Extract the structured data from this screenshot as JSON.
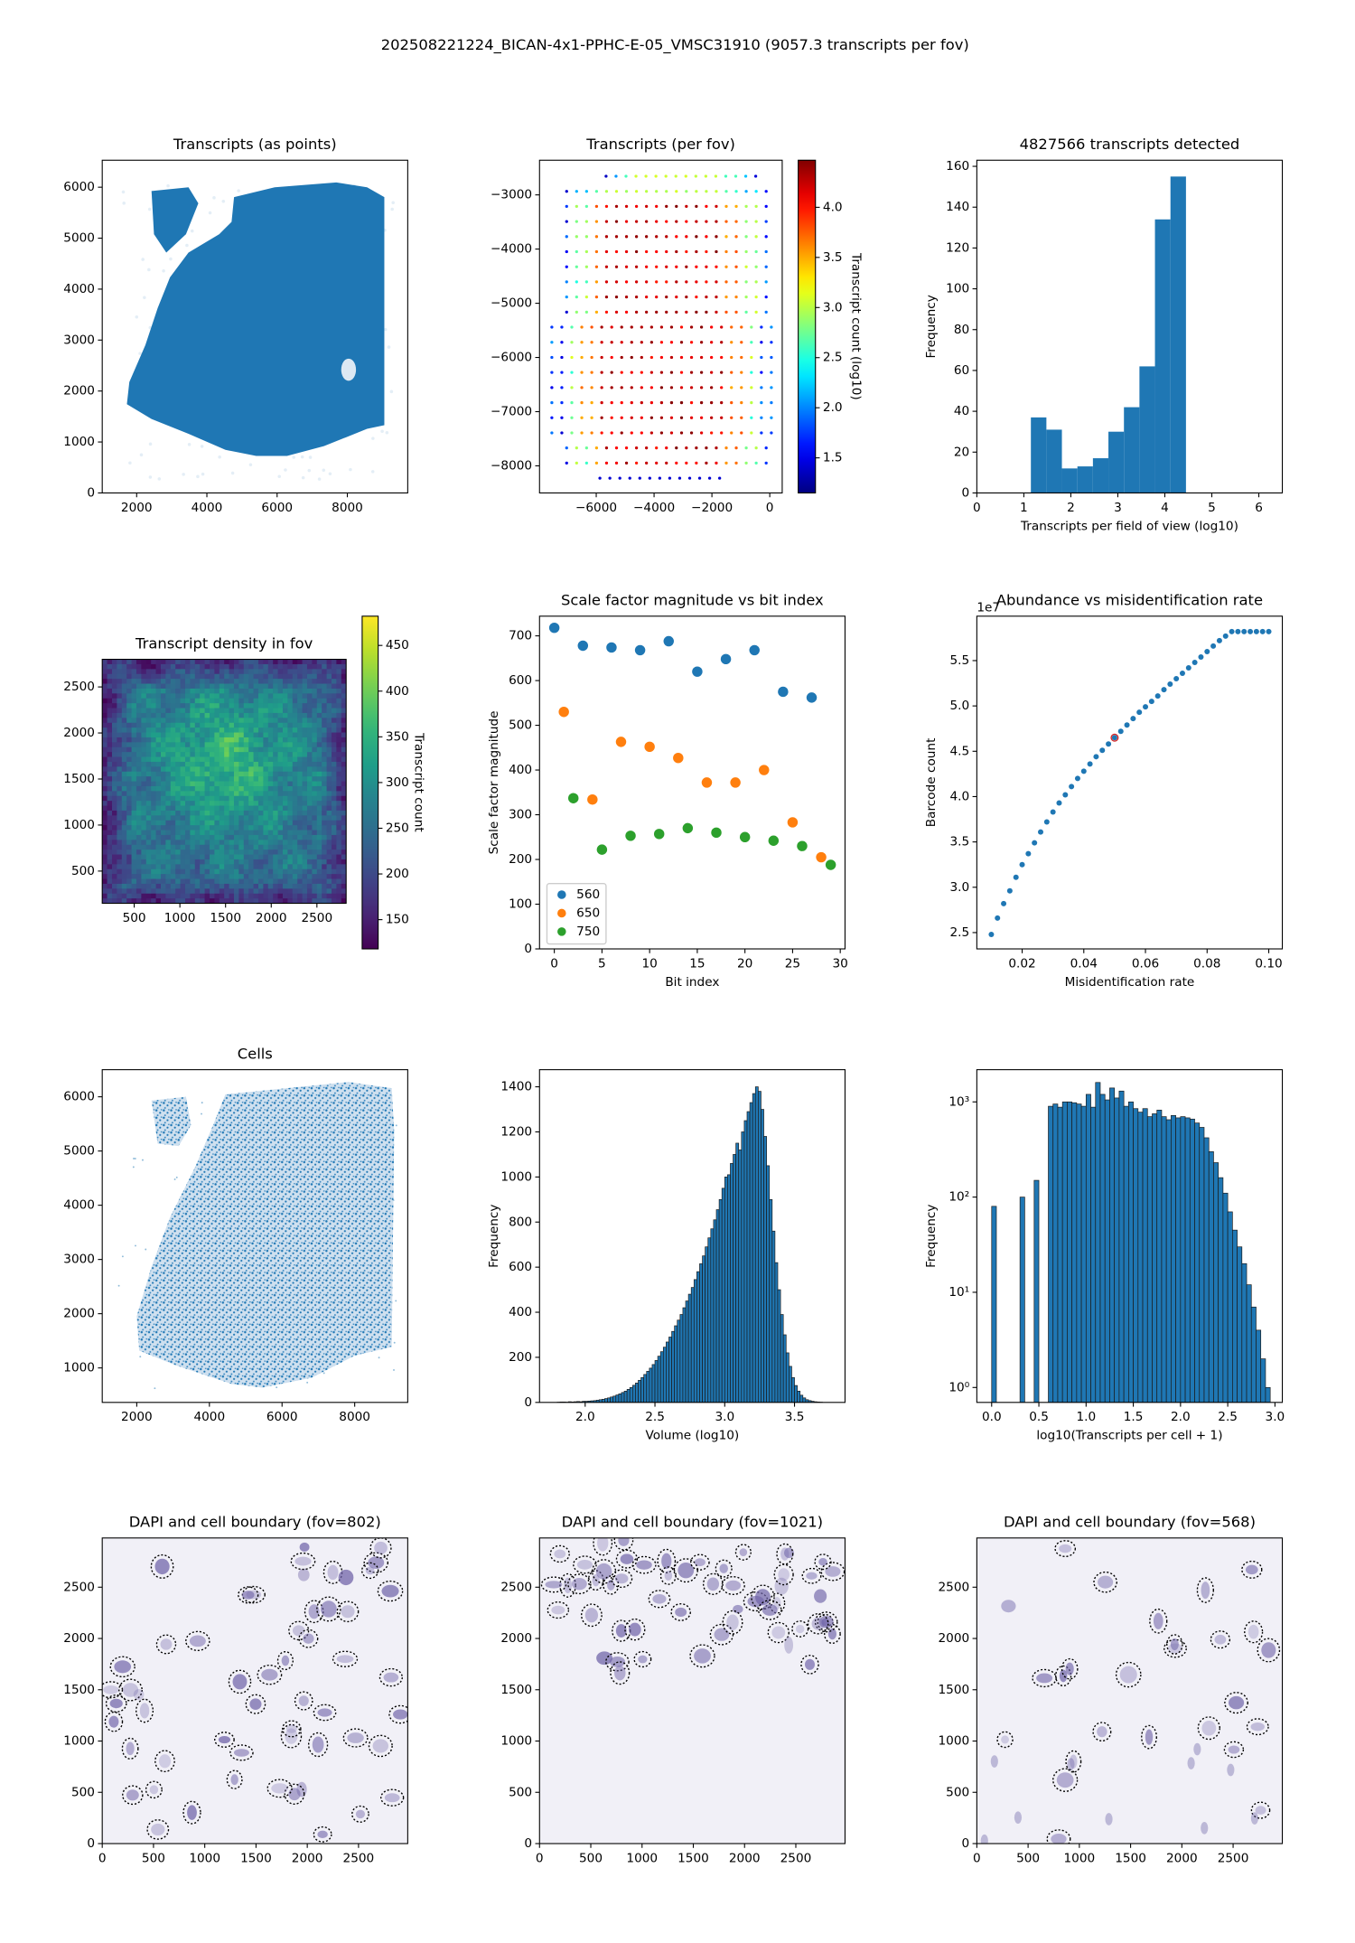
{
  "title": "202508221224_BICAN-4x1-PPHC-E-05_VMSC31910 (9057.3 transcripts per fov)",
  "chart_data": [
    {
      "type": "pointcloud",
      "title": "Transcripts (as points)",
      "color": "#1f77b4",
      "xlim": [
        1020,
        9720
      ],
      "ylim": [
        0,
        6530
      ],
      "xticks": [
        2000,
        4000,
        6000,
        8000
      ],
      "yticks": [
        0,
        1000,
        2000,
        3000,
        4000,
        5000,
        6000
      ]
    },
    {
      "type": "fovgrid",
      "title": "Transcripts (per fov)",
      "xlim": [
        -7960,
        430
      ],
      "ylim": [
        -8500,
        -2360
      ],
      "xticks": [
        {
          "value": -6000,
          "label": "−6000"
        },
        {
          "value": -4000,
          "label": "−4000"
        },
        {
          "value": -2000,
          "label": "−2000"
        },
        0
      ],
      "yticks": [
        {
          "value": -3000,
          "label": "−3000"
        },
        {
          "value": -4000,
          "label": "−4000"
        },
        {
          "value": -5000,
          "label": "−5000"
        },
        {
          "value": -6000,
          "label": "−6000"
        },
        {
          "value": -7000,
          "label": "−7000"
        },
        {
          "value": -8000,
          "label": "−8000"
        }
      ],
      "colorbar": {
        "label": "Transcript count (log10)",
        "cmap": "jet",
        "lim": [
          1.15,
          4.47
        ],
        "ticks": [
          1.5,
          {
            "value": 2,
            "label": "2.0"
          },
          2.5,
          {
            "value": 3,
            "label": "3.0"
          },
          3.5,
          {
            "value": 4,
            "label": "4.0"
          }
        ]
      }
    },
    {
      "type": "histogram",
      "title": "4827566 transcripts detected",
      "xlabel": "Transcripts per field of view (log10)",
      "ylabel": "Frequency",
      "color": "#1f77b4",
      "bins": [
        1.15,
        1.48,
        1.81,
        2.14,
        2.47,
        2.8,
        3.13,
        3.46,
        3.79,
        4.12,
        4.45
      ],
      "counts": [
        37,
        31,
        12,
        13,
        17,
        30,
        42,
        62,
        134,
        155
      ],
      "xlim": [
        0,
        6.5
      ],
      "ylim": [
        0,
        163
      ],
      "xticks": [
        0,
        1,
        2,
        3,
        4,
        5,
        6
      ],
      "yticks": [
        0,
        20,
        40,
        60,
        80,
        100,
        120,
        140,
        160
      ]
    },
    {
      "type": "heatmap",
      "title": "Transcript density in fov",
      "xlim": [
        150,
        2820
      ],
      "ylim": [
        150,
        2800
      ],
      "xticks": [
        500,
        1000,
        1500,
        2000,
        2500
      ],
      "yticks": [
        500,
        1000,
        1500,
        2000,
        2500
      ],
      "colorbar": {
        "label": "Transcript count",
        "cmap": "viridis",
        "lim": [
          118,
          482
        ],
        "ticks": [
          150,
          200,
          250,
          300,
          350,
          400,
          450
        ]
      }
    },
    {
      "type": "scatter",
      "title": "Scale factor magnitude vs bit index",
      "xlabel": "Bit index",
      "ylabel": "Scale factor magnitude",
      "legend": "lower left",
      "xlim": [
        -1.55,
        30.5
      ],
      "ylim": [
        0,
        744
      ],
      "xticks": [
        0,
        5,
        10,
        15,
        20,
        25,
        30
      ],
      "yticks": [
        0,
        100,
        200,
        300,
        400,
        500,
        600,
        700
      ],
      "series": [
        {
          "name": "560",
          "color": "#1f77b4",
          "x": [
            0,
            3,
            6,
            9,
            12,
            15,
            18,
            21,
            24,
            27
          ],
          "values": [
            718,
            678,
            674,
            668,
            688,
            620,
            648,
            668,
            575,
            562
          ]
        },
        {
          "name": "650",
          "color": "#ff7f0e",
          "x": [
            1,
            4,
            7,
            10,
            13,
            16,
            19,
            22,
            25,
            28
          ],
          "values": [
            530,
            334,
            463,
            452,
            427,
            372,
            372,
            400,
            283,
            205
          ]
        },
        {
          "name": "750",
          "color": "#2ca02c",
          "x": [
            2,
            5,
            8,
            11,
            14,
            17,
            20,
            23,
            26,
            29
          ],
          "values": [
            337,
            222,
            253,
            257,
            270,
            260,
            250,
            242,
            230,
            188
          ]
        }
      ]
    },
    {
      "type": "scatter",
      "title": "Abundance vs misidentification rate",
      "xlabel": "Misidentification rate",
      "ylabel": "Barcode count",
      "offset_label": "1e7",
      "xlim": [
        0.0053,
        0.1044
      ],
      "ylim": [
        2.32,
        5.99
      ],
      "xticks": [
        0.02,
        0.04,
        0.06,
        0.08,
        {
          "value": 0.1,
          "label": "0.10"
        }
      ],
      "yticks": [
        2.5,
        {
          "value": 3,
          "label": "3.0"
        },
        3.5,
        {
          "value": 4,
          "label": "4.0"
        },
        4.5,
        {
          "value": 5,
          "label": "5.0"
        },
        5.5
      ],
      "series": [
        {
          "color": "#1f77b4",
          "x": [
            0.01,
            0.012,
            0.014,
            0.016,
            0.018,
            0.02,
            0.022,
            0.024,
            0.026,
            0.028,
            0.03,
            0.032,
            0.034,
            0.036,
            0.038,
            0.04,
            0.042,
            0.044,
            0.046,
            0.048,
            0.05,
            0.052,
            0.054,
            0.056,
            0.058,
            0.06,
            0.062,
            0.064,
            0.066,
            0.068,
            0.07,
            0.072,
            0.074,
            0.076,
            0.078,
            0.08,
            0.082,
            0.084,
            0.086,
            0.088,
            0.09,
            0.092,
            0.094,
            0.096,
            0.098,
            0.1
          ],
          "values": [
            2.48,
            2.66,
            2.82,
            2.96,
            3.11,
            3.25,
            3.37,
            3.49,
            3.61,
            3.72,
            3.83,
            3.93,
            4.02,
            4.11,
            4.2,
            4.28,
            4.36,
            4.44,
            4.51,
            4.58,
            4.65,
            4.72,
            4.79,
            4.86,
            4.93,
            4.99,
            5.05,
            5.11,
            5.18,
            5.24,
            5.3,
            5.36,
            5.42,
            5.48,
            5.54,
            5.6,
            5.66,
            5.72,
            5.77,
            5.82,
            5.82,
            5.82,
            5.82,
            5.82,
            5.82,
            5.82
          ]
        }
      ],
      "highlight": {
        "x": 0.05,
        "y": 4.65,
        "color": "#d62728"
      }
    },
    {
      "type": "cellcloud",
      "title": "Cells",
      "color": "#1f77b4",
      "xlim": [
        1050,
        9460
      ],
      "ylim": [
        364,
        6500
      ],
      "xticks": [
        2000,
        4000,
        6000,
        8000
      ],
      "yticks": [
        1000,
        2000,
        3000,
        4000,
        5000,
        6000
      ]
    },
    {
      "type": "histogram",
      "xlabel": "Volume (log10)",
      "ylabel": "Frequency",
      "color": "#1f77b4",
      "edgecolor": "#1a1a1a",
      "bins": [
        1.8,
        1.82,
        1.84,
        1.86,
        1.88,
        1.9,
        1.92,
        1.94,
        1.96,
        1.98,
        2,
        2.02,
        2.04,
        2.06,
        2.08,
        2.1,
        2.12,
        2.14,
        2.16,
        2.18,
        2.2,
        2.22,
        2.24,
        2.26,
        2.28,
        2.3,
        2.32,
        2.34,
        2.36,
        2.38,
        2.4,
        2.42,
        2.44,
        2.46,
        2.48,
        2.5,
        2.52,
        2.54,
        2.56,
        2.58,
        2.6,
        2.62,
        2.64,
        2.66,
        2.68,
        2.7,
        2.72,
        2.74,
        2.76,
        2.78,
        2.8,
        2.82,
        2.84,
        2.86,
        2.88,
        2.9,
        2.92,
        2.94,
        2.96,
        2.98,
        3,
        3.02,
        3.04,
        3.06,
        3.08,
        3.1,
        3.12,
        3.14,
        3.16,
        3.18,
        3.2,
        3.22,
        3.24,
        3.26,
        3.28,
        3.3,
        3.32,
        3.34,
        3.36,
        3.38,
        3.4,
        3.42,
        3.44,
        3.46,
        3.48,
        3.5,
        3.52,
        3.54,
        3.56,
        3.58,
        3.6,
        3.62,
        3.64,
        3.66,
        3.68,
        3.7
      ],
      "counts": [
        1,
        2,
        2,
        1,
        3,
        2,
        3,
        4,
        3,
        5,
        5,
        6,
        7,
        8,
        10,
        12,
        14,
        17,
        20,
        24,
        28,
        33,
        38,
        44,
        50,
        58,
        66,
        76,
        86,
        98,
        110,
        124,
        138,
        152,
        168,
        186,
        205,
        225,
        245,
        268,
        290,
        315,
        340,
        365,
        390,
        420,
        450,
        480,
        510,
        545,
        580,
        615,
        650,
        690,
        730,
        770,
        810,
        855,
        900,
        950,
        1000,
        1010,
        1060,
        1100,
        1150,
        1120,
        1200,
        1250,
        1290,
        1330,
        1370,
        1400,
        1380,
        1300,
        1180,
        1050,
        900,
        760,
        620,
        500,
        390,
        300,
        220,
        160,
        110,
        75,
        50,
        32,
        20,
        12,
        8,
        5,
        3,
        2,
        1
      ],
      "xlim": [
        1.673,
        3.862
      ],
      "ylim": [
        0,
        1476
      ],
      "xticks": [
        {
          "value": 2,
          "label": "2.0"
        },
        2.5,
        {
          "value": 3,
          "label": "3.0"
        },
        3.5
      ],
      "yticks": [
        0,
        200,
        400,
        600,
        800,
        1000,
        1200,
        1400
      ]
    },
    {
      "type": "histogram",
      "xlabel": "log10(Transcripts per cell + 1)",
      "ylabel": "Frequency",
      "color": "#1f77b4",
      "edgecolor": "#1a1a1a",
      "ylog": true,
      "bins": [
        0,
        0.05,
        0.1,
        0.15,
        0.2,
        0.25,
        0.3,
        0.35,
        0.4,
        0.45,
        0.5,
        0.55,
        0.6,
        0.65,
        0.7,
        0.75,
        0.8,
        0.85,
        0.9,
        0.95,
        1,
        1.05,
        1.1,
        1.15,
        1.2,
        1.25,
        1.3,
        1.35,
        1.4,
        1.45,
        1.5,
        1.55,
        1.6,
        1.65,
        1.7,
        1.75,
        1.8,
        1.85,
        1.9,
        1.95,
        2,
        2.05,
        2.1,
        2.15,
        2.2,
        2.25,
        2.3,
        2.35,
        2.4,
        2.45,
        2.5,
        2.55,
        2.6,
        2.65,
        2.7,
        2.75,
        2.8,
        2.85,
        2.9,
        2.95
      ],
      "counts": [
        80,
        0,
        0,
        0,
        0,
        0,
        100,
        0,
        0,
        150,
        0,
        0,
        900,
        950,
        880,
        1000,
        1000,
        980,
        950,
        900,
        1200,
        880,
        1600,
        1200,
        1050,
        1400,
        1100,
        1300,
        900,
        1000,
        850,
        780,
        850,
        700,
        750,
        820,
        700,
        650,
        720,
        680,
        700,
        680,
        660,
        600,
        540,
        420,
        300,
        230,
        160,
        110,
        70,
        45,
        30,
        20,
        12,
        7,
        4,
        2,
        1
      ],
      "xlim": [
        -0.157,
        3.078
      ],
      "ylim": [
        0.697,
        2180
      ],
      "xticks": [
        {
          "value": 0,
          "label": "0.0"
        },
        0.5,
        {
          "value": 1,
          "label": "1.0"
        },
        1.5,
        {
          "value": 2,
          "label": "2.0"
        },
        2.5,
        {
          "value": 3,
          "label": "3.0"
        }
      ],
      "yticks": [
        {
          "value": 1,
          "label": "10⁰"
        },
        {
          "value": 10,
          "label": "10¹"
        },
        {
          "value": 100,
          "label": "10²"
        },
        {
          "value": 1000,
          "label": "10³"
        }
      ]
    },
    {
      "type": "microscopy",
      "title": "DAPI and cell boundary (fov=802)",
      "xlim": [
        0,
        2980
      ],
      "ylim": [
        0,
        2980
      ],
      "xticks": [
        0,
        500,
        1000,
        1500,
        2000,
        2500
      ],
      "yticks": [
        0,
        500,
        1000,
        1500,
        2000,
        2500
      ]
    },
    {
      "type": "microscopy",
      "title": "DAPI and cell boundary (fov=1021)",
      "xlim": [
        0,
        2980
      ],
      "ylim": [
        0,
        2980
      ],
      "xticks": [
        0,
        500,
        1000,
        1500,
        2000,
        2500
      ],
      "yticks": [
        0,
        500,
        1000,
        1500,
        2000,
        2500
      ]
    },
    {
      "type": "microscopy",
      "title": "DAPI and cell boundary (fov=568)",
      "xlim": [
        0,
        2980
      ],
      "ylim": [
        0,
        2980
      ],
      "xticks": [
        0,
        500,
        1000,
        1500,
        2000,
        2500
      ],
      "yticks": [
        0,
        500,
        1000,
        1500,
        2000,
        2500
      ]
    }
  ]
}
